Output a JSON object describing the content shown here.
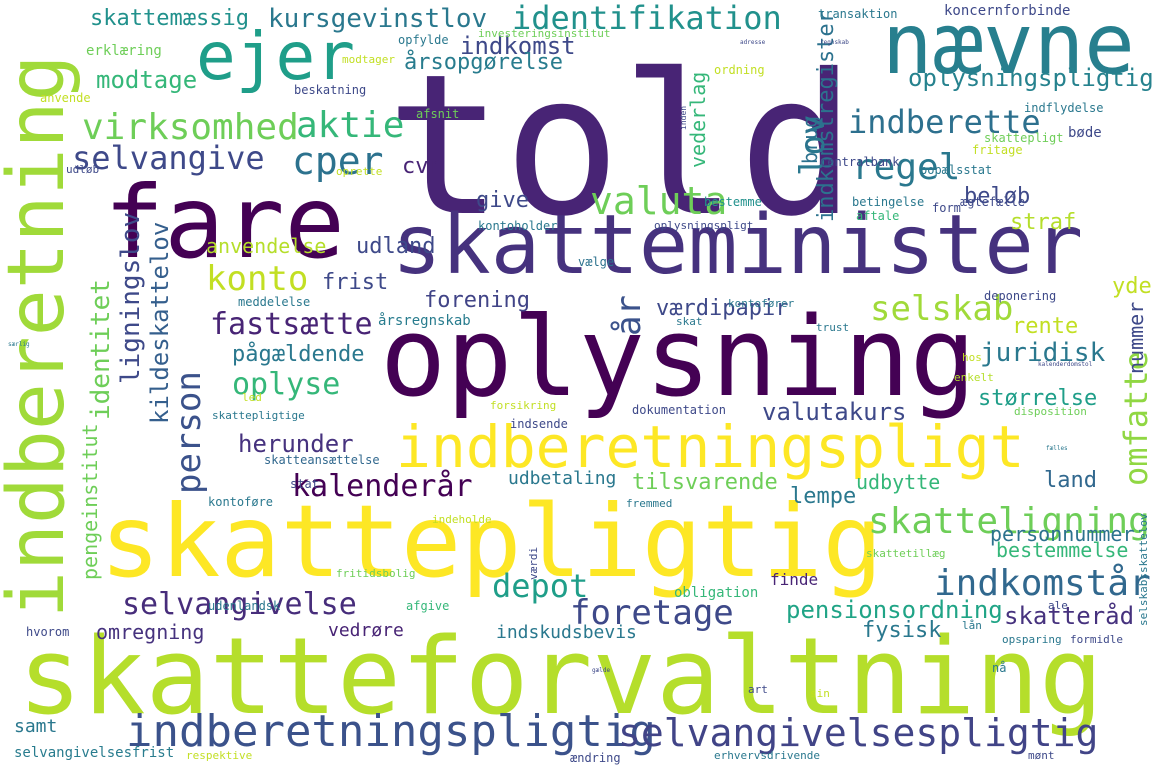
{
  "words": [
    {
      "text": "told",
      "color": "#482475"
    },
    {
      "text": "skatteforvaltning",
      "color": "#b5de2b"
    },
    {
      "text": "skattepligtig",
      "color": "#fde725"
    },
    {
      "text": "oplysning",
      "color": "#440154"
    },
    {
      "text": "skatteminister",
      "color": "#46327e"
    },
    {
      "text": "fare",
      "color": "#440154"
    },
    {
      "text": "indberetning",
      "color": "#a0da39"
    },
    {
      "text": "nævne",
      "color": "#277f8e"
    },
    {
      "text": "indberetningspligt",
      "color": "#fde725"
    },
    {
      "text": "ejer",
      "color": "#1f9e89"
    },
    {
      "text": "indberetningspligtig",
      "color": "#3b528b"
    },
    {
      "text": "selvangivelsespligtig",
      "color": "#414487"
    },
    {
      "text": "skatteligning",
      "color": "#6ece58"
    },
    {
      "text": "virksomhed",
      "color": "#6ece58"
    },
    {
      "text": "aktie",
      "color": "#35b779"
    },
    {
      "text": "selvangive",
      "color": "#3e4989"
    },
    {
      "text": "cper",
      "color": "#2c728e"
    },
    {
      "text": "regel",
      "color": "#2a788e"
    },
    {
      "text": "valuta",
      "color": "#6ece58"
    },
    {
      "text": "konto",
      "color": "#c2df23"
    },
    {
      "text": "fastsætte",
      "color": "#482475"
    },
    {
      "text": "person",
      "color": "#3b528b"
    },
    {
      "text": "oplyse",
      "color": "#35b779"
    },
    {
      "text": "selvangivelse",
      "color": "#472d7b"
    },
    {
      "text": "kalenderår",
      "color": "#440154"
    },
    {
      "text": "foretage",
      "color": "#3e4989"
    },
    {
      "text": "depot",
      "color": "#1f9e89"
    },
    {
      "text": "indkomstår",
      "color": "#31688e"
    },
    {
      "text": "selskab",
      "color": "#a0da39"
    },
    {
      "text": "indberette",
      "color": "#2d708e"
    },
    {
      "text": "oplysningspligtig",
      "color": "#26828e"
    },
    {
      "text": "identifikation",
      "color": "#21918c"
    },
    {
      "text": "kursgevinstlov",
      "color": "#2a788e"
    },
    {
      "text": "skattemæssig",
      "color": "#21918c"
    },
    {
      "text": "indkomst",
      "color": "#3e4989"
    },
    {
      "text": "årsopgørelse",
      "color": "#287c8e"
    },
    {
      "text": "modtage",
      "color": "#35b779"
    },
    {
      "text": "lov",
      "color": "#2a788e"
    },
    {
      "text": "år",
      "color": "#3b528b"
    },
    {
      "text": "identitet",
      "color": "#6ece58"
    },
    {
      "text": "ligningslov",
      "color": "#3e4989"
    },
    {
      "text": "kildeskattelov",
      "color": "#355f8d"
    },
    {
      "text": "pengeinstitut",
      "color": "#6ece58"
    },
    {
      "text": "omfatte",
      "color": "#90d743"
    },
    {
      "text": "juridisk",
      "color": "#2a788e"
    },
    {
      "text": "størrelse",
      "color": "#1f9e89"
    },
    {
      "text": "rente",
      "color": "#c2df23"
    },
    {
      "text": "nummer",
      "color": "#3e4989"
    },
    {
      "text": "yde",
      "color": "#c2df23"
    },
    {
      "text": "personnummer",
      "color": "#2c728e"
    },
    {
      "text": "bestemmelse",
      "color": "#35b779"
    },
    {
      "text": "pensionsordning",
      "color": "#20a486"
    },
    {
      "text": "skatteråd",
      "color": "#46327e"
    },
    {
      "text": "fysisk",
      "color": "#2a788e"
    },
    {
      "text": "land",
      "color": "#31688e"
    },
    {
      "text": "lempe",
      "color": "#2a788e"
    },
    {
      "text": "udbytte",
      "color": "#35b779"
    },
    {
      "text": "tilsvarende",
      "color": "#6ece58"
    },
    {
      "text": "udbetaling",
      "color": "#2a788e"
    },
    {
      "text": "herunder",
      "color": "#46327e"
    },
    {
      "text": "valutakurs",
      "color": "#3e4989"
    },
    {
      "text": "pågældende",
      "color": "#2a788e"
    },
    {
      "text": "værdipapir",
      "color": "#3e4989"
    },
    {
      "text": "forening",
      "color": "#414487"
    },
    {
      "text": "frist",
      "color": "#3e4989"
    },
    {
      "text": "udland",
      "color": "#3e4989"
    },
    {
      "text": "cvr",
      "color": "#482475"
    },
    {
      "text": "give",
      "color": "#3e4989"
    },
    {
      "text": "anvendelse",
      "color": "#b5de2b"
    },
    {
      "text": "beløb",
      "color": "#3e4989"
    },
    {
      "text": "straf",
      "color": "#b5de2b"
    },
    {
      "text": "vederlag",
      "color": "#35b779"
    },
    {
      "text": "indkomstregister",
      "color": "#2c728e"
    },
    {
      "text": "brug",
      "color": "#2c728e"
    },
    {
      "text": "omregning",
      "color": "#46327e"
    },
    {
      "text": "vedrøre",
      "color": "#482475"
    },
    {
      "text": "indskudsbevis",
      "color": "#2a788e"
    },
    {
      "text": "samt",
      "color": "#2a788e"
    },
    {
      "text": "selvangivelsesfrist",
      "color": "#287c8e"
    },
    {
      "text": "hvorom",
      "color": "#3e4989"
    },
    {
      "text": "udenlandsk",
      "color": "#2a788e"
    },
    {
      "text": "finde",
      "color": "#482475"
    },
    {
      "text": "obligation",
      "color": "#35b779"
    },
    {
      "text": "afgive",
      "color": "#35b779"
    },
    {
      "text": "kontoføre",
      "color": "#2a788e"
    },
    {
      "text": "skatteansættelse",
      "color": "#31688e"
    },
    {
      "text": "stat",
      "color": "#3e4989"
    },
    {
      "text": "dokumentation",
      "color": "#3e4989"
    },
    {
      "text": "indsende",
      "color": "#3e4989"
    },
    {
      "text": "forsikring",
      "color": "#c2df23"
    },
    {
      "text": "årsregnskab",
      "color": "#287c8e"
    },
    {
      "text": "meddelelse",
      "color": "#2a788e"
    },
    {
      "text": "kontoholder",
      "color": "#2a788e"
    },
    {
      "text": "vælge",
      "color": "#2c728e"
    },
    {
      "text": "bestemme",
      "color": "#21918c"
    },
    {
      "text": "betingelse",
      "color": "#2a788e"
    },
    {
      "text": "aftale",
      "color": "#35b779"
    },
    {
      "text": "form",
      "color": "#3e4989"
    },
    {
      "text": "ægtefælle",
      "color": "#3e4989"
    },
    {
      "text": "bopælsstat",
      "color": "#2a788e"
    },
    {
      "text": "centralbank",
      "color": "#3e4989"
    },
    {
      "text": "skattepligt",
      "color": "#6ece58"
    },
    {
      "text": "bøde",
      "color": "#3e4989"
    },
    {
      "text": "indflydelse",
      "color": "#2a788e"
    },
    {
      "text": "fritage",
      "color": "#c2df23"
    },
    {
      "text": "deponering",
      "color": "#3e4989"
    },
    {
      "text": "trust",
      "color": "#2a788e"
    },
    {
      "text": "hos",
      "color": "#c2df23"
    },
    {
      "text": "enkelt",
      "color": "#b5de2b"
    },
    {
      "text": "disposition",
      "color": "#6ece58"
    },
    {
      "text": "koncernforbinde",
      "color": "#3e4989"
    },
    {
      "text": "transaktion",
      "color": "#2a788e"
    },
    {
      "text": "beskatning",
      "color": "#3e4989"
    },
    {
      "text": "ordning",
      "color": "#c2df23"
    },
    {
      "text": "modtager",
      "color": "#c2df23"
    },
    {
      "text": "investeringsinstitut",
      "color": "#6ece58"
    },
    {
      "text": "opfylde",
      "color": "#2a788e"
    },
    {
      "text": "erklæring",
      "color": "#6ece58"
    },
    {
      "text": "anvende",
      "color": "#c2df23"
    },
    {
      "text": "udløb",
      "color": "#3e4989"
    },
    {
      "text": "afsnit",
      "color": "#6ece58"
    },
    {
      "text": "oprette",
      "color": "#c2df23"
    },
    {
      "text": "oplysningspligt",
      "color": "#3e4989"
    },
    {
      "text": "kontofører",
      "color": "#2a788e"
    },
    {
      "text": "skat",
      "color": "#2a788e"
    },
    {
      "text": "led",
      "color": "#c2df23"
    },
    {
      "text": "skattepligtige",
      "color": "#2a788e"
    },
    {
      "text": "fremmed",
      "color": "#2a788e"
    },
    {
      "text": "indeholde",
      "color": "#c2df23"
    },
    {
      "text": "fritidsbolig",
      "color": "#6ece58"
    },
    {
      "text": "skattetillæg",
      "color": "#6ece58"
    },
    {
      "text": "ale",
      "color": "#3e4989"
    },
    {
      "text": "lån",
      "color": "#2a788e"
    },
    {
      "text": "opsparing",
      "color": "#2a788e"
    },
    {
      "text": "formidle",
      "color": "#3e4989"
    },
    {
      "text": "nå",
      "color": "#2a788e"
    },
    {
      "text": "art",
      "color": "#3e4989"
    },
    {
      "text": "sin",
      "color": "#c2df23"
    },
    {
      "text": "ændring",
      "color": "#3e4989"
    },
    {
      "text": "erhvervsdrivende",
      "color": "#2a788e"
    },
    {
      "text": "respektive",
      "color": "#c2df23"
    },
    {
      "text": "mønt",
      "color": "#3e4989"
    },
    {
      "text": "værdi",
      "color": "#3e4989"
    },
    {
      "text": "selskabsskattelov",
      "color": "#2a788e"
    },
    {
      "text": "kalenderdomstol",
      "color": "#3e4989"
    },
    {
      "text": "særlig",
      "color": "#2a788e"
    },
    {
      "text": "inden",
      "color": "#3e4989"
    },
    {
      "text": "fælles",
      "color": "#2a788e"
    },
    {
      "text": "regnskab",
      "color": "#3e4989"
    },
    {
      "text": "adresse",
      "color": "#3e4989"
    },
    {
      "text": "gælde",
      "color": "#3e4989"
    }
  ]
}
